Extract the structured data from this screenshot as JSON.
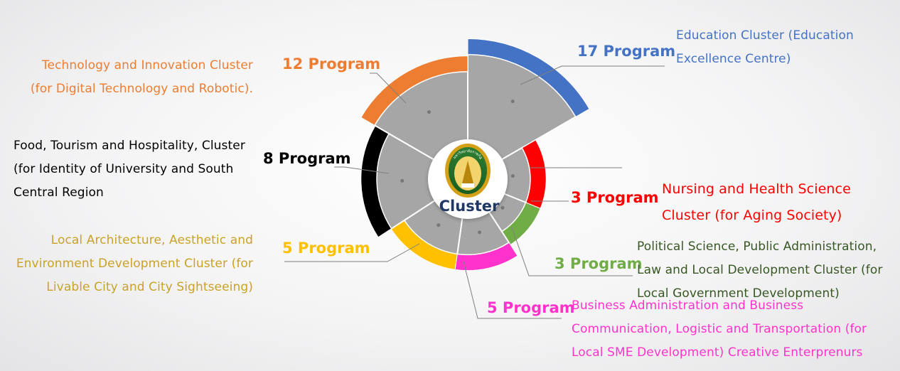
{
  "center_label": "Cluster",
  "colors": {
    "education": "#4472C4",
    "nursing": "#FF0000",
    "political": "#70AD47",
    "business": "#FF33CC",
    "architecture": "#FFC000",
    "food": "#000000",
    "technology": "#ED7D31",
    "wedge_fill": "#A6A6A6",
    "center_text": "#1F3864",
    "architecture_text": "#C9A227",
    "political_text": "#385723"
  },
  "logo": {
    "text": "มหาวิทยาลัยราชภัฏ"
  },
  "chart_data": {
    "type": "polar-area",
    "title": "",
    "categories": [
      "Education Cluster (Education Excellence Centre)",
      "Nursing and Health Science Cluster (for Aging Society)",
      "Political Science, Public Administration, Law and Local Development Cluster (for Local Government Development)",
      "Business Administration and Business Communication, Logistic and Transportation (for Local SME Development) Creative Enterprenurs",
      "Local Architecture, Aesthetic and Environment Development Cluster (for Livable City and City Sightseeing)",
      "Food, Tourism and Hospitality, Cluster (for Identity of University and South Central Region",
      "Technology and Innovation Cluster (for Digital Technology and Robotic)."
    ],
    "values": [
      17,
      3,
      3,
      5,
      5,
      8,
      12
    ],
    "value_labels": [
      "17 Program",
      "3 Program",
      "3 Program",
      "5 Program",
      "5 Program",
      "8 Program",
      "12 Program"
    ]
  },
  "clusters": [
    {
      "key": "education",
      "count_label": "17 Program",
      "desc_lines": [
        "Education Cluster (Education",
        "Excellence Centre)"
      ]
    },
    {
      "key": "nursing",
      "count_label": "3 Program",
      "desc_lines": [
        "Nursing and Health Science",
        "Cluster (for Aging Society)"
      ]
    },
    {
      "key": "political",
      "count_label": "3 Program",
      "desc_lines": [
        "Political Science, Public Administration,",
        "Law and Local Development Cluster (for",
        "Local Government Development)"
      ]
    },
    {
      "key": "business",
      "count_label": "5 Program",
      "desc_lines": [
        "Business Administration and Business",
        "Communication, Logistic and Transportation (for",
        "Local SME Development) Creative Enterprenurs"
      ]
    },
    {
      "key": "architecture",
      "count_label": "5 Program",
      "desc_lines": [
        "Local Architecture, Aesthetic and",
        "Environment Development Cluster (for",
        "Livable City and City Sightseeing)"
      ]
    },
    {
      "key": "food",
      "count_label": "8 Program",
      "desc_lines": [
        "Food, Tourism and Hospitality, Cluster",
        "(for Identity of University and South",
        "Central Region"
      ]
    },
    {
      "key": "technology",
      "count_label": "12 Program",
      "desc_lines": [
        "Technology and Innovation Cluster",
        "(for Digital Technology and Robotic)."
      ]
    }
  ]
}
